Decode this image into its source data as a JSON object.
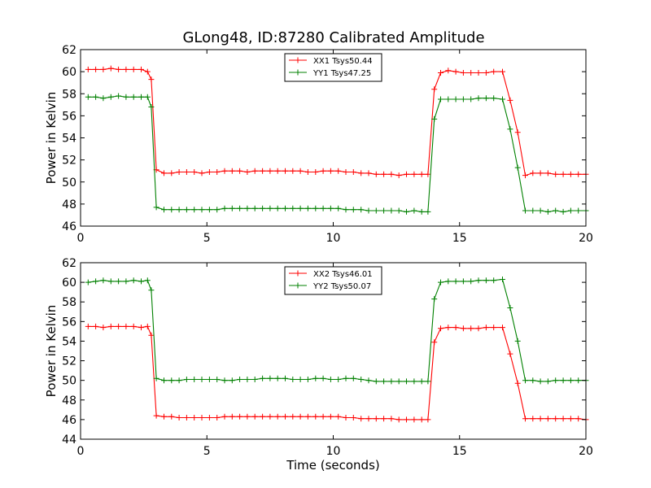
{
  "figure": {
    "title": "GLong48, ID:87280 Calibrated Amplitude",
    "background": "#ffffff"
  },
  "chart_data": [
    {
      "type": "line",
      "title": "GLong48, ID:87280 Calibrated Amplitude",
      "xlabel": "",
      "ylabel": "Power in Kelvin",
      "xlim": [
        0,
        20
      ],
      "ylim": [
        46,
        62
      ],
      "xticks": [
        0,
        5,
        10,
        15,
        20
      ],
      "yticks": [
        46,
        48,
        50,
        52,
        54,
        56,
        58,
        60,
        62
      ],
      "grid": false,
      "legend_position": "top-center",
      "x": [
        0.3,
        0.6,
        0.9,
        1.2,
        1.5,
        1.8,
        2.1,
        2.4,
        2.65,
        2.8,
        3.0,
        3.3,
        3.6,
        3.9,
        4.2,
        4.5,
        4.8,
        5.1,
        5.4,
        5.7,
        6.0,
        6.3,
        6.6,
        6.9,
        7.2,
        7.5,
        7.8,
        8.1,
        8.4,
        8.7,
        9.0,
        9.3,
        9.6,
        9.9,
        10.2,
        10.5,
        10.8,
        11.1,
        11.4,
        11.7,
        12.0,
        12.3,
        12.6,
        12.9,
        13.2,
        13.5,
        13.75,
        14.0,
        14.25,
        14.55,
        14.85,
        15.15,
        15.45,
        15.75,
        16.05,
        16.35,
        16.7,
        17.0,
        17.3,
        17.6,
        17.9,
        18.2,
        18.5,
        18.8,
        19.1,
        19.4,
        19.7,
        20.0
      ],
      "series": [
        {
          "name": "XX1 Tsys50.44",
          "color": "#ff0000",
          "values": [
            60.2,
            60.2,
            60.2,
            60.3,
            60.2,
            60.2,
            60.2,
            60.2,
            60.0,
            59.3,
            51.1,
            50.8,
            50.8,
            50.9,
            50.9,
            50.9,
            50.8,
            50.9,
            50.9,
            51.0,
            51.0,
            51.0,
            50.9,
            51.0,
            51.0,
            51.0,
            51.0,
            51.0,
            51.0,
            51.0,
            50.9,
            50.9,
            51.0,
            51.0,
            51.0,
            50.9,
            50.9,
            50.8,
            50.8,
            50.7,
            50.7,
            50.7,
            50.6,
            50.7,
            50.7,
            50.7,
            50.7,
            58.4,
            59.9,
            60.1,
            60.0,
            59.9,
            59.9,
            59.9,
            59.9,
            60.0,
            60.0,
            57.4,
            54.5,
            50.6,
            50.8,
            50.8,
            50.8,
            50.7,
            50.7,
            50.7,
            50.7,
            50.7
          ]
        },
        {
          "name": "YY1 Tsys47.25",
          "color": "#008000",
          "values": [
            57.7,
            57.7,
            57.6,
            57.7,
            57.8,
            57.7,
            57.7,
            57.7,
            57.7,
            56.8,
            47.7,
            47.5,
            47.5,
            47.5,
            47.5,
            47.5,
            47.5,
            47.5,
            47.5,
            47.6,
            47.6,
            47.6,
            47.6,
            47.6,
            47.6,
            47.6,
            47.6,
            47.6,
            47.6,
            47.6,
            47.6,
            47.6,
            47.6,
            47.6,
            47.6,
            47.5,
            47.5,
            47.5,
            47.4,
            47.4,
            47.4,
            47.4,
            47.4,
            47.3,
            47.4,
            47.3,
            47.3,
            55.7,
            57.5,
            57.5,
            57.5,
            57.5,
            57.5,
            57.6,
            57.6,
            57.6,
            57.5,
            54.8,
            51.3,
            47.4,
            47.4,
            47.4,
            47.3,
            47.4,
            47.3,
            47.4,
            47.4,
            47.4
          ]
        }
      ]
    },
    {
      "type": "line",
      "title": "",
      "xlabel": "Time (seconds)",
      "ylabel": "Power in Kelvin",
      "xlim": [
        0,
        20
      ],
      "ylim": [
        44,
        62
      ],
      "xticks": [
        0,
        5,
        10,
        15,
        20
      ],
      "yticks": [
        44,
        46,
        48,
        50,
        52,
        54,
        56,
        58,
        60,
        62
      ],
      "grid": false,
      "legend_position": "top-center",
      "x": [
        0.3,
        0.6,
        0.9,
        1.2,
        1.5,
        1.8,
        2.1,
        2.4,
        2.65,
        2.8,
        3.0,
        3.3,
        3.6,
        3.9,
        4.2,
        4.5,
        4.8,
        5.1,
        5.4,
        5.7,
        6.0,
        6.3,
        6.6,
        6.9,
        7.2,
        7.5,
        7.8,
        8.1,
        8.4,
        8.7,
        9.0,
        9.3,
        9.6,
        9.9,
        10.2,
        10.5,
        10.8,
        11.1,
        11.4,
        11.7,
        12.0,
        12.3,
        12.6,
        12.9,
        13.2,
        13.5,
        13.75,
        14.0,
        14.25,
        14.55,
        14.85,
        15.15,
        15.45,
        15.75,
        16.05,
        16.35,
        16.7,
        17.0,
        17.3,
        17.6,
        17.9,
        18.2,
        18.5,
        18.8,
        19.1,
        19.4,
        19.7,
        20.0
      ],
      "series": [
        {
          "name": "XX2 Tsys46.01",
          "color": "#ff0000",
          "values": [
            55.5,
            55.5,
            55.4,
            55.5,
            55.5,
            55.5,
            55.5,
            55.4,
            55.5,
            54.6,
            46.4,
            46.3,
            46.3,
            46.2,
            46.2,
            46.2,
            46.2,
            46.2,
            46.2,
            46.3,
            46.3,
            46.3,
            46.3,
            46.3,
            46.3,
            46.3,
            46.3,
            46.3,
            46.3,
            46.3,
            46.3,
            46.3,
            46.3,
            46.3,
            46.3,
            46.2,
            46.2,
            46.1,
            46.1,
            46.1,
            46.1,
            46.1,
            46.0,
            46.0,
            46.0,
            46.0,
            46.0,
            53.9,
            55.3,
            55.4,
            55.4,
            55.3,
            55.3,
            55.3,
            55.4,
            55.4,
            55.4,
            52.7,
            49.7,
            46.1,
            46.1,
            46.1,
            46.1,
            46.1,
            46.1,
            46.1,
            46.1,
            46.0
          ]
        },
        {
          "name": "YY2 Tsys50.07",
          "color": "#008000",
          "values": [
            60.0,
            60.1,
            60.2,
            60.1,
            60.1,
            60.1,
            60.2,
            60.1,
            60.2,
            59.2,
            50.2,
            50.0,
            50.0,
            50.0,
            50.1,
            50.1,
            50.1,
            50.1,
            50.1,
            50.0,
            50.0,
            50.1,
            50.1,
            50.1,
            50.2,
            50.2,
            50.2,
            50.2,
            50.1,
            50.1,
            50.1,
            50.2,
            50.2,
            50.1,
            50.1,
            50.2,
            50.2,
            50.1,
            50.0,
            49.9,
            49.9,
            49.9,
            49.9,
            49.9,
            49.9,
            49.9,
            49.9,
            58.3,
            60.0,
            60.1,
            60.1,
            60.1,
            60.1,
            60.2,
            60.2,
            60.2,
            60.3,
            57.4,
            54.0,
            50.0,
            50.0,
            49.9,
            49.9,
            50.0,
            50.0,
            50.0,
            50.0,
            50.0
          ]
        }
      ]
    }
  ]
}
